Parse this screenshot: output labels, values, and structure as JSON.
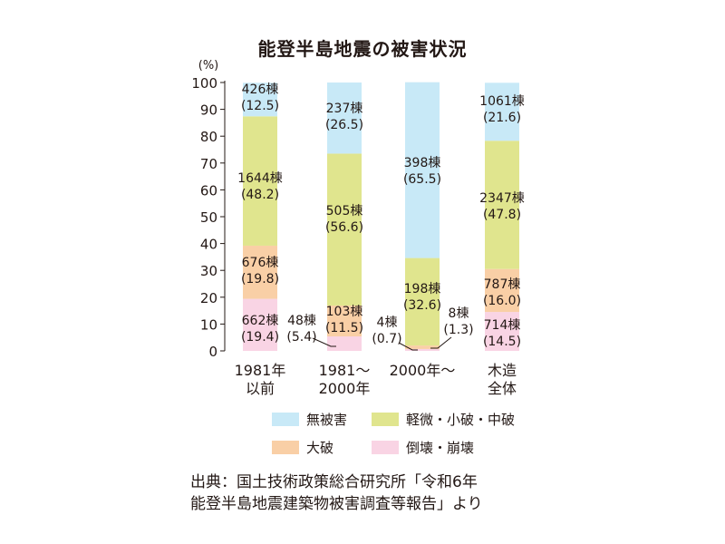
{
  "chart_data": {
    "type": "bar",
    "stacked": true,
    "title": "能登半島地震の被害状況",
    "unit_label": "(%)",
    "ylim": [
      0,
      100
    ],
    "yticks": [
      0,
      10,
      20,
      30,
      40,
      50,
      60,
      70,
      80,
      90,
      100
    ],
    "categories": [
      [
        "1981年",
        "以前"
      ],
      [
        "1981～",
        "2000年"
      ],
      [
        "2000年～"
      ],
      [
        "木造",
        "全体"
      ]
    ],
    "series": [
      {
        "name": "倒壊・崩壊",
        "color": "#f9d4e4",
        "values": [
          19.4,
          5.4,
          0.7,
          14.5
        ],
        "labels": [
          "662棟",
          "48棟",
          "4棟",
          "714棟"
        ],
        "pcts": [
          "(19.4)",
          "(5.4)",
          "(0.7)",
          "(14.5)"
        ]
      },
      {
        "name": "大破",
        "color": "#f9cfa6",
        "values": [
          19.8,
          11.5,
          1.3,
          16.0
        ],
        "labels": [
          "676棟",
          "103棟",
          "8棟",
          "787棟"
        ],
        "pcts": [
          "(19.8)",
          "(11.5)",
          "(1.3)",
          "(16.0)"
        ]
      },
      {
        "name": "軽微・小破・中破",
        "color": "#e0e58e",
        "values": [
          48.2,
          56.6,
          32.6,
          47.8
        ],
        "labels": [
          "1644棟",
          "505棟",
          "198棟",
          "2347棟"
        ],
        "pcts": [
          "(48.2)",
          "(56.6)",
          "(32.6)",
          "(47.8)"
        ]
      },
      {
        "name": "無被害",
        "color": "#c8e9f7",
        "values": [
          12.5,
          26.5,
          65.5,
          21.6
        ],
        "labels": [
          "426棟",
          "237棟",
          "398棟",
          "1061棟"
        ],
        "pcts": [
          "(12.5)",
          "(26.5)",
          "(65.5)",
          "(21.6)"
        ]
      }
    ],
    "legend": [
      "無被害",
      "軽微・小破・中破",
      "大破",
      "倒壊・崩壊"
    ],
    "legend_placement": "bottom"
  },
  "source": {
    "line1": "出典：国土技術政策総合研究所「令和6年",
    "line2": "能登半島地震建築物被害調査等報告」より"
  }
}
